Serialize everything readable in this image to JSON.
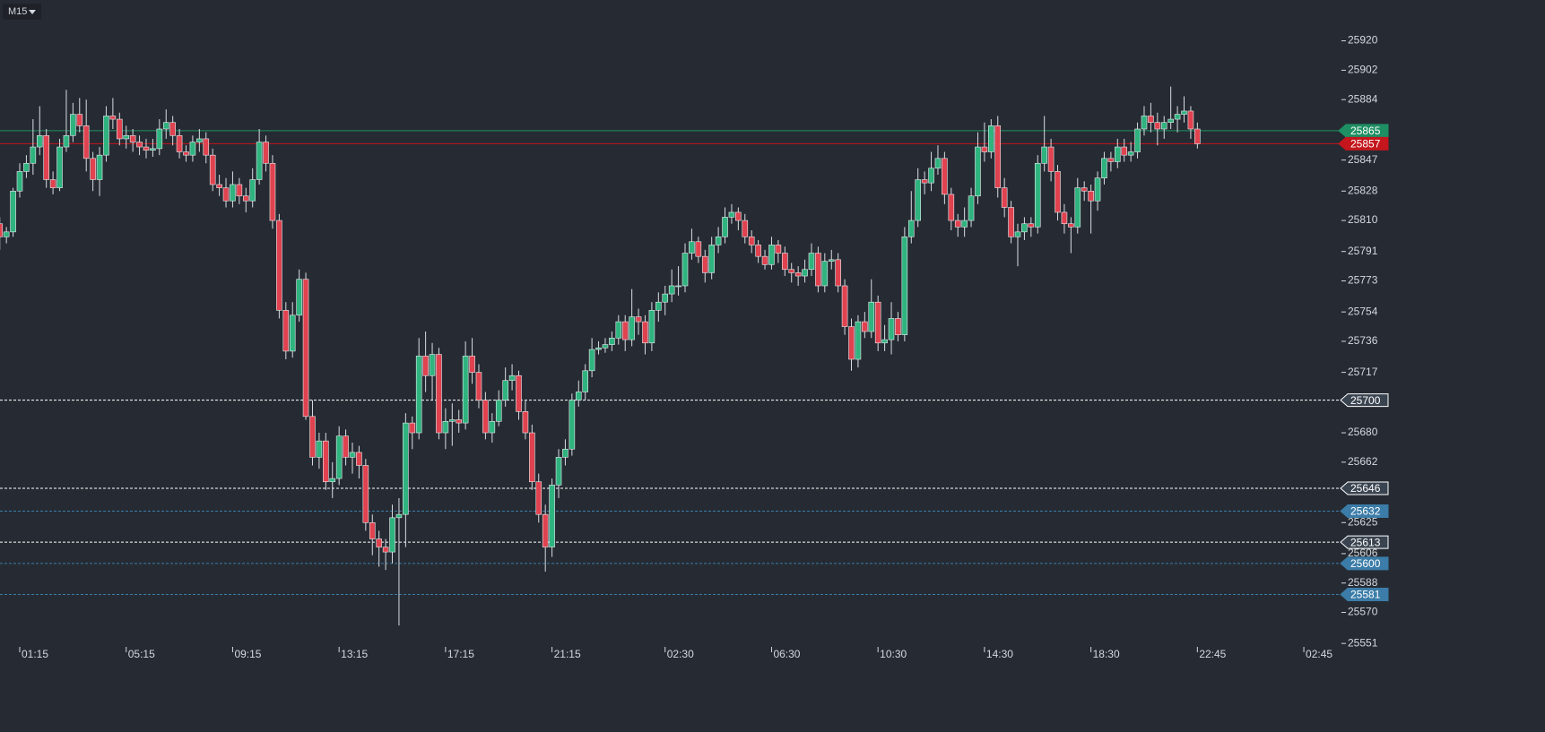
{
  "toolbar": {
    "timeframe": "M15"
  },
  "chart_data": {
    "type": "candlestick",
    "ylim": [
      25550,
      25945
    ],
    "yticks": [
      25920,
      25902,
      25884,
      25847,
      25828,
      25810,
      25791,
      25773,
      25754,
      25736,
      25717,
      25680,
      25662,
      25625,
      25606,
      25588,
      25570,
      25551
    ],
    "xticks": [
      {
        "value": 3,
        "label": "01:15"
      },
      {
        "value": 19,
        "label": "05:15"
      },
      {
        "value": 35,
        "label": "09:15"
      },
      {
        "value": 51,
        "label": "13:15"
      },
      {
        "value": 67,
        "label": "17:15"
      },
      {
        "value": 83,
        "label": "21:15"
      },
      {
        "value": 100,
        "label": "02:30"
      },
      {
        "value": 116,
        "label": "06:30"
      },
      {
        "value": 132,
        "label": "10:30"
      },
      {
        "value": 148,
        "label": "14:30"
      },
      {
        "value": 164,
        "label": "18:30"
      },
      {
        "value": 180,
        "label": "22:45"
      },
      {
        "value": 196,
        "label": "02:45"
      }
    ],
    "up_color": "#2fb37f",
    "down_color": "#e0424f",
    "price_lines": [
      {
        "value": 25865,
        "color": "#1e8f63",
        "style": "solid"
      },
      {
        "value": 25857,
        "color": "#c4161c",
        "style": "solid"
      },
      {
        "value": 25700,
        "color": "#ffffff",
        "style": "dashed"
      },
      {
        "value": 25646,
        "color": "#ffffff",
        "style": "dashed"
      },
      {
        "value": 25613,
        "color": "#ffffff",
        "style": "dashed"
      },
      {
        "value": 25632,
        "color": "#3b7ca8",
        "style": "dashed"
      },
      {
        "value": 25600,
        "color": "#3b7ca8",
        "style": "dashed"
      },
      {
        "value": 25581,
        "color": "#3b7ca8",
        "style": "dashed"
      }
    ],
    "candles": [
      [
        25808,
        25812,
        25792,
        25800
      ],
      [
        25800,
        25806,
        25796,
        25803
      ],
      [
        25803,
        25830,
        25800,
        25828
      ],
      [
        25828,
        25845,
        25824,
        25840
      ],
      [
        25840,
        25850,
        25836,
        25845
      ],
      [
        25845,
        25872,
        25838,
        25855
      ],
      [
        25855,
        25880,
        25850,
        25862
      ],
      [
        25862,
        25866,
        25830,
        25835
      ],
      [
        25835,
        25840,
        25826,
        25830
      ],
      [
        25830,
        25860,
        25828,
        25855
      ],
      [
        25855,
        25890,
        25852,
        25862
      ],
      [
        25862,
        25882,
        25858,
        25875
      ],
      [
        25875,
        25885,
        25864,
        25868
      ],
      [
        25868,
        25884,
        25840,
        25848
      ],
      [
        25848,
        25852,
        25828,
        25835
      ],
      [
        25835,
        25855,
        25825,
        25850
      ],
      [
        25850,
        25880,
        25846,
        25874
      ],
      [
        25874,
        25885,
        25866,
        25872
      ],
      [
        25872,
        25876,
        25856,
        25860
      ],
      [
        25860,
        25868,
        25854,
        25862
      ],
      [
        25862,
        25866,
        25852,
        25858
      ],
      [
        25858,
        25862,
        25850,
        25855
      ],
      [
        25855,
        25860,
        25848,
        25853
      ],
      [
        25853,
        25860,
        25849,
        25854
      ],
      [
        25854,
        25872,
        25850,
        25866
      ],
      [
        25866,
        25878,
        25860,
        25870
      ],
      [
        25870,
        25874,
        25856,
        25862
      ],
      [
        25862,
        25866,
        25848,
        25852
      ],
      [
        25852,
        25856,
        25846,
        25850
      ],
      [
        25850,
        25862,
        25846,
        25858
      ],
      [
        25858,
        25866,
        25852,
        25860
      ],
      [
        25860,
        25864,
        25845,
        25850
      ],
      [
        25850,
        25854,
        25828,
        25832
      ],
      [
        25832,
        25838,
        25825,
        25830
      ],
      [
        25830,
        25836,
        25818,
        25822
      ],
      [
        25822,
        25840,
        25818,
        25832
      ],
      [
        25832,
        25836,
        25820,
        25825
      ],
      [
        25825,
        25830,
        25815,
        25822
      ],
      [
        25822,
        25842,
        25818,
        25835
      ],
      [
        25835,
        25866,
        25832,
        25858
      ],
      [
        25858,
        25862,
        25840,
        25845
      ],
      [
        25845,
        25850,
        25805,
        25810
      ],
      [
        25810,
        25814,
        25750,
        25755
      ],
      [
        25755,
        25760,
        25725,
        25730
      ],
      [
        25730,
        25760,
        25726,
        25752
      ],
      [
        25752,
        25780,
        25748,
        25774
      ],
      [
        25774,
        25778,
        25688,
        25690
      ],
      [
        25690,
        25700,
        25660,
        25665
      ],
      [
        25665,
        25680,
        25658,
        25675
      ],
      [
        25675,
        25680,
        25645,
        25650
      ],
      [
        25650,
        25662,
        25640,
        25652
      ],
      [
        25652,
        25684,
        25648,
        25678
      ],
      [
        25678,
        25682,
        25660,
        25665
      ],
      [
        25665,
        25674,
        25655,
        25668
      ],
      [
        25668,
        25672,
        25652,
        25660
      ],
      [
        25660,
        25664,
        25620,
        25625
      ],
      [
        25625,
        25630,
        25605,
        25615
      ],
      [
        25615,
        25620,
        25598,
        25610
      ],
      [
        25610,
        25615,
        25596,
        25607
      ],
      [
        25607,
        25636,
        25600,
        25628
      ],
      [
        25628,
        25640,
        25562,
        25630
      ],
      [
        25630,
        25692,
        25610,
        25686
      ],
      [
        25686,
        25690,
        25670,
        25680
      ],
      [
        25680,
        25738,
        25676,
        25727
      ],
      [
        25727,
        25742,
        25705,
        25715
      ],
      [
        25715,
        25735,
        25700,
        25728
      ],
      [
        25728,
        25732,
        25676,
        25680
      ],
      [
        25680,
        25695,
        25670,
        25687
      ],
      [
        25687,
        25698,
        25672,
        25688
      ],
      [
        25688,
        25694,
        25680,
        25686
      ],
      [
        25686,
        25736,
        25682,
        25727
      ],
      [
        25727,
        25738,
        25710,
        25717
      ],
      [
        25717,
        25722,
        25695,
        25700
      ],
      [
        25700,
        25705,
        25676,
        25680
      ],
      [
        25680,
        25692,
        25674,
        25687
      ],
      [
        25687,
        25706,
        25684,
        25700
      ],
      [
        25700,
        25720,
        25696,
        25712
      ],
      [
        25712,
        25722,
        25706,
        25715
      ],
      [
        25715,
        25718,
        25688,
        25693
      ],
      [
        25693,
        25700,
        25676,
        25680
      ],
      [
        25680,
        25685,
        25645,
        25650
      ],
      [
        25650,
        25655,
        25625,
        25630
      ],
      [
        25630,
        25636,
        25595,
        25610
      ],
      [
        25610,
        25652,
        25604,
        25648
      ],
      [
        25648,
        25670,
        25640,
        25665
      ],
      [
        25665,
        25676,
        25660,
        25670
      ],
      [
        25670,
        25704,
        25666,
        25700
      ],
      [
        25700,
        25712,
        25696,
        25705
      ],
      [
        25705,
        25722,
        25700,
        25718
      ],
      [
        25718,
        25738,
        25714,
        25731
      ],
      [
        25731,
        25736,
        25728,
        25732
      ],
      [
        25732,
        25738,
        25729,
        25734
      ],
      [
        25734,
        25742,
        25730,
        25738
      ],
      [
        25738,
        25752,
        25734,
        25748
      ],
      [
        25748,
        25752,
        25730,
        25737
      ],
      [
        25737,
        25768,
        25733,
        25751
      ],
      [
        25751,
        25756,
        25740,
        25748
      ],
      [
        25748,
        25752,
        25728,
        25735
      ],
      [
        25735,
        25760,
        25730,
        25755
      ],
      [
        25755,
        25766,
        25748,
        25760
      ],
      [
        25760,
        25770,
        25752,
        25765
      ],
      [
        25765,
        25780,
        25760,
        25770
      ],
      [
        25770,
        25782,
        25764,
        25770
      ],
      [
        25770,
        25796,
        25766,
        25790
      ],
      [
        25790,
        25805,
        25786,
        25797
      ],
      [
        25797,
        25800,
        25784,
        25788
      ],
      [
        25788,
        25792,
        25772,
        25778
      ],
      [
        25778,
        25800,
        25774,
        25795
      ],
      [
        25795,
        25806,
        25790,
        25800
      ],
      [
        25800,
        25818,
        25796,
        25812
      ],
      [
        25812,
        25820,
        25808,
        25815
      ],
      [
        25815,
        25818,
        25804,
        25810
      ],
      [
        25810,
        25814,
        25796,
        25800
      ],
      [
        25800,
        25804,
        25790,
        25795
      ],
      [
        25795,
        25798,
        25784,
        25788
      ],
      [
        25788,
        25792,
        25780,
        25783
      ],
      [
        25783,
        25800,
        25780,
        25795
      ],
      [
        25795,
        25798,
        25784,
        25790
      ],
      [
        25790,
        25794,
        25776,
        25780
      ],
      [
        25780,
        25784,
        25772,
        25778
      ],
      [
        25778,
        25782,
        25770,
        25776
      ],
      [
        25776,
        25786,
        25772,
        25780
      ],
      [
        25780,
        25796,
        25776,
        25790
      ],
      [
        25790,
        25794,
        25766,
        25770
      ],
      [
        25770,
        25790,
        25766,
        25785
      ],
      [
        25785,
        25792,
        25780,
        25786
      ],
      [
        25786,
        25790,
        25766,
        25770
      ],
      [
        25770,
        25774,
        25740,
        25745
      ],
      [
        25745,
        25750,
        25718,
        25725
      ],
      [
        25725,
        25752,
        25720,
        25748
      ],
      [
        25748,
        25754,
        25738,
        25742
      ],
      [
        25742,
        25774,
        25738,
        25760
      ],
      [
        25760,
        25764,
        25730,
        25735
      ],
      [
        25735,
        25746,
        25730,
        25737
      ],
      [
        25737,
        25760,
        25728,
        25750
      ],
      [
        25750,
        25754,
        25736,
        25740
      ],
      [
        25740,
        25806,
        25736,
        25800
      ],
      [
        25800,
        25828,
        25796,
        25810
      ],
      [
        25810,
        25842,
        25806,
        25835
      ],
      [
        25835,
        25840,
        25826,
        25833
      ],
      [
        25833,
        25852,
        25828,
        25842
      ],
      [
        25842,
        25856,
        25838,
        25848
      ],
      [
        25848,
        25852,
        25820,
        25826
      ],
      [
        25826,
        25830,
        25804,
        25810
      ],
      [
        25810,
        25814,
        25800,
        25806
      ],
      [
        25806,
        25818,
        25800,
        25810
      ],
      [
        25810,
        25830,
        25806,
        25825
      ],
      [
        25825,
        25864,
        25820,
        25855
      ],
      [
        25855,
        25870,
        25846,
        25852
      ],
      [
        25852,
        25872,
        25848,
        25868
      ],
      [
        25868,
        25874,
        25824,
        25830
      ],
      [
        25830,
        25836,
        25812,
        25818
      ],
      [
        25818,
        25822,
        25796,
        25800
      ],
      [
        25800,
        25808,
        25782,
        25803
      ],
      [
        25803,
        25812,
        25798,
        25808
      ],
      [
        25808,
        25812,
        25800,
        25806
      ],
      [
        25806,
        25850,
        25802,
        25845
      ],
      [
        25845,
        25874,
        25840,
        25855
      ],
      [
        25855,
        25860,
        25834,
        25840
      ],
      [
        25840,
        25844,
        25810,
        25815
      ],
      [
        25815,
        25820,
        25802,
        25808
      ],
      [
        25808,
        25812,
        25790,
        25806
      ],
      [
        25806,
        25836,
        25802,
        25830
      ],
      [
        25830,
        25834,
        25822,
        25828
      ],
      [
        25828,
        25832,
        25802,
        25822
      ],
      [
        25822,
        25840,
        25816,
        25836
      ],
      [
        25836,
        25852,
        25832,
        25848
      ],
      [
        25848,
        25852,
        25840,
        25846
      ],
      [
        25846,
        25860,
        25842,
        25855
      ],
      [
        25855,
        25860,
        25846,
        25850
      ],
      [
        25850,
        25858,
        25846,
        25852
      ],
      [
        25852,
        25870,
        25848,
        25866
      ],
      [
        25866,
        25880,
        25862,
        25874
      ],
      [
        25874,
        25882,
        25864,
        25870
      ],
      [
        25870,
        25876,
        25856,
        25866
      ],
      [
        25866,
        25874,
        25860,
        25870
      ],
      [
        25870,
        25892,
        25866,
        25872
      ],
      [
        25872,
        25880,
        25864,
        25875
      ],
      [
        25875,
        25886,
        25870,
        25877
      ],
      [
        25877,
        25880,
        25860,
        25866
      ],
      [
        25866,
        25870,
        25854,
        25857
      ]
    ]
  }
}
